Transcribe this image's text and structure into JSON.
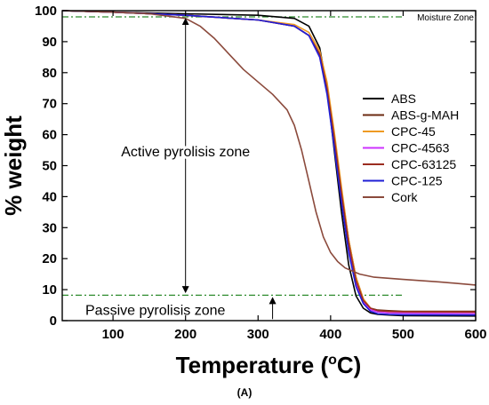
{
  "chart_data": {
    "type": "line",
    "panel_label": "(A)",
    "xlabel": "Temperature (",
    "xlabel_sup": "o",
    "xlabel_end": "C)",
    "ylabel": "% weight",
    "xlim": [
      30,
      600
    ],
    "ylim": [
      0,
      100
    ],
    "x_ticks": [
      100,
      200,
      300,
      400,
      500,
      600
    ],
    "y_ticks": [
      0,
      10,
      20,
      30,
      40,
      50,
      60,
      70,
      80,
      90,
      100
    ],
    "legend_position": "right",
    "annotations": {
      "moisture": "Moisture Zone",
      "active": "Active pyrolisis zone",
      "passive": "Passive pyrolisis zone"
    },
    "reference_lines": [
      {
        "y": 98,
        "style": "dash-dot",
        "color": "#2e8b2e"
      },
      {
        "y": 8.2,
        "style": "dash-dot",
        "color": "#2e8b2e"
      }
    ],
    "series": [
      {
        "name": "ABS",
        "color": "#000000",
        "x": [
          30,
          100,
          200,
          300,
          350,
          370,
          385,
          395,
          405,
          415,
          425,
          435,
          445,
          455,
          465,
          480,
          500,
          600
        ],
        "y": [
          100,
          99.5,
          99,
          98.5,
          97.5,
          95,
          88,
          75,
          55,
          35,
          18,
          8,
          4,
          2.5,
          2,
          1.8,
          1.6,
          1.5
        ]
      },
      {
        "name": "ABS-g-MAH",
        "color": "#6b2a10",
        "x": [
          30,
          100,
          200,
          300,
          350,
          370,
          385,
          395,
          405,
          415,
          425,
          435,
          445,
          455,
          465,
          480,
          500,
          600
        ],
        "y": [
          100,
          99.5,
          98.5,
          97,
          95,
          92,
          86,
          76,
          60,
          42,
          26,
          14,
          7,
          4,
          3.4,
          3.2,
          3,
          3
        ]
      },
      {
        "name": "CPC-45",
        "color": "#ee9a22",
        "x": [
          30,
          100,
          200,
          300,
          350,
          370,
          385,
          395,
          405,
          415,
          425,
          435,
          445,
          455,
          465,
          480,
          500,
          600
        ],
        "y": [
          100,
          99.5,
          98.5,
          97,
          95.5,
          93,
          87,
          77,
          61,
          43,
          26,
          14,
          7,
          4,
          3,
          2.8,
          2.7,
          2.5
        ]
      },
      {
        "name": "CPC-4563",
        "color": "#cc33ff",
        "x": [
          30,
          100,
          200,
          300,
          350,
          370,
          385,
          395,
          405,
          415,
          425,
          435,
          445,
          455,
          465,
          480,
          500,
          600
        ],
        "y": [
          100,
          99.5,
          98.5,
          97,
          95,
          92,
          85,
          74,
          57,
          40,
          24,
          12,
          6,
          3.5,
          2.8,
          2.5,
          2.4,
          2.3
        ]
      },
      {
        "name": "CPC-63125",
        "color": "#9b2d20",
        "x": [
          30,
          100,
          200,
          300,
          350,
          370,
          385,
          395,
          405,
          415,
          425,
          435,
          445,
          455,
          465,
          480,
          500,
          600
        ],
        "y": [
          100,
          99.5,
          98.5,
          97,
          95,
          92,
          86,
          75,
          59,
          41,
          25,
          13,
          6.5,
          4,
          3.2,
          3,
          2.9,
          2.8
        ]
      },
      {
        "name": "CPC-125",
        "color": "#1f1fd6",
        "x": [
          30,
          100,
          200,
          300,
          350,
          370,
          385,
          395,
          405,
          415,
          425,
          435,
          445,
          455,
          465,
          480,
          500,
          600
        ],
        "y": [
          100,
          99.5,
          98.5,
          97,
          95,
          92,
          85,
          73,
          56,
          38,
          22,
          11,
          5.5,
          3,
          2.2,
          2,
          1.9,
          1.8
        ]
      },
      {
        "name": "Cork",
        "color": "#8b4a3c",
        "x": [
          30,
          100,
          150,
          200,
          220,
          240,
          260,
          280,
          300,
          320,
          340,
          350,
          360,
          370,
          380,
          390,
          400,
          410,
          420,
          440,
          460,
          500,
          550,
          600
        ],
        "y": [
          100,
          99.5,
          99,
          97.5,
          95,
          91,
          86,
          81,
          77,
          73,
          68,
          63,
          55,
          45,
          35,
          27,
          22,
          19,
          17,
          15,
          14,
          13.3,
          12.5,
          11.5
        ]
      }
    ]
  }
}
